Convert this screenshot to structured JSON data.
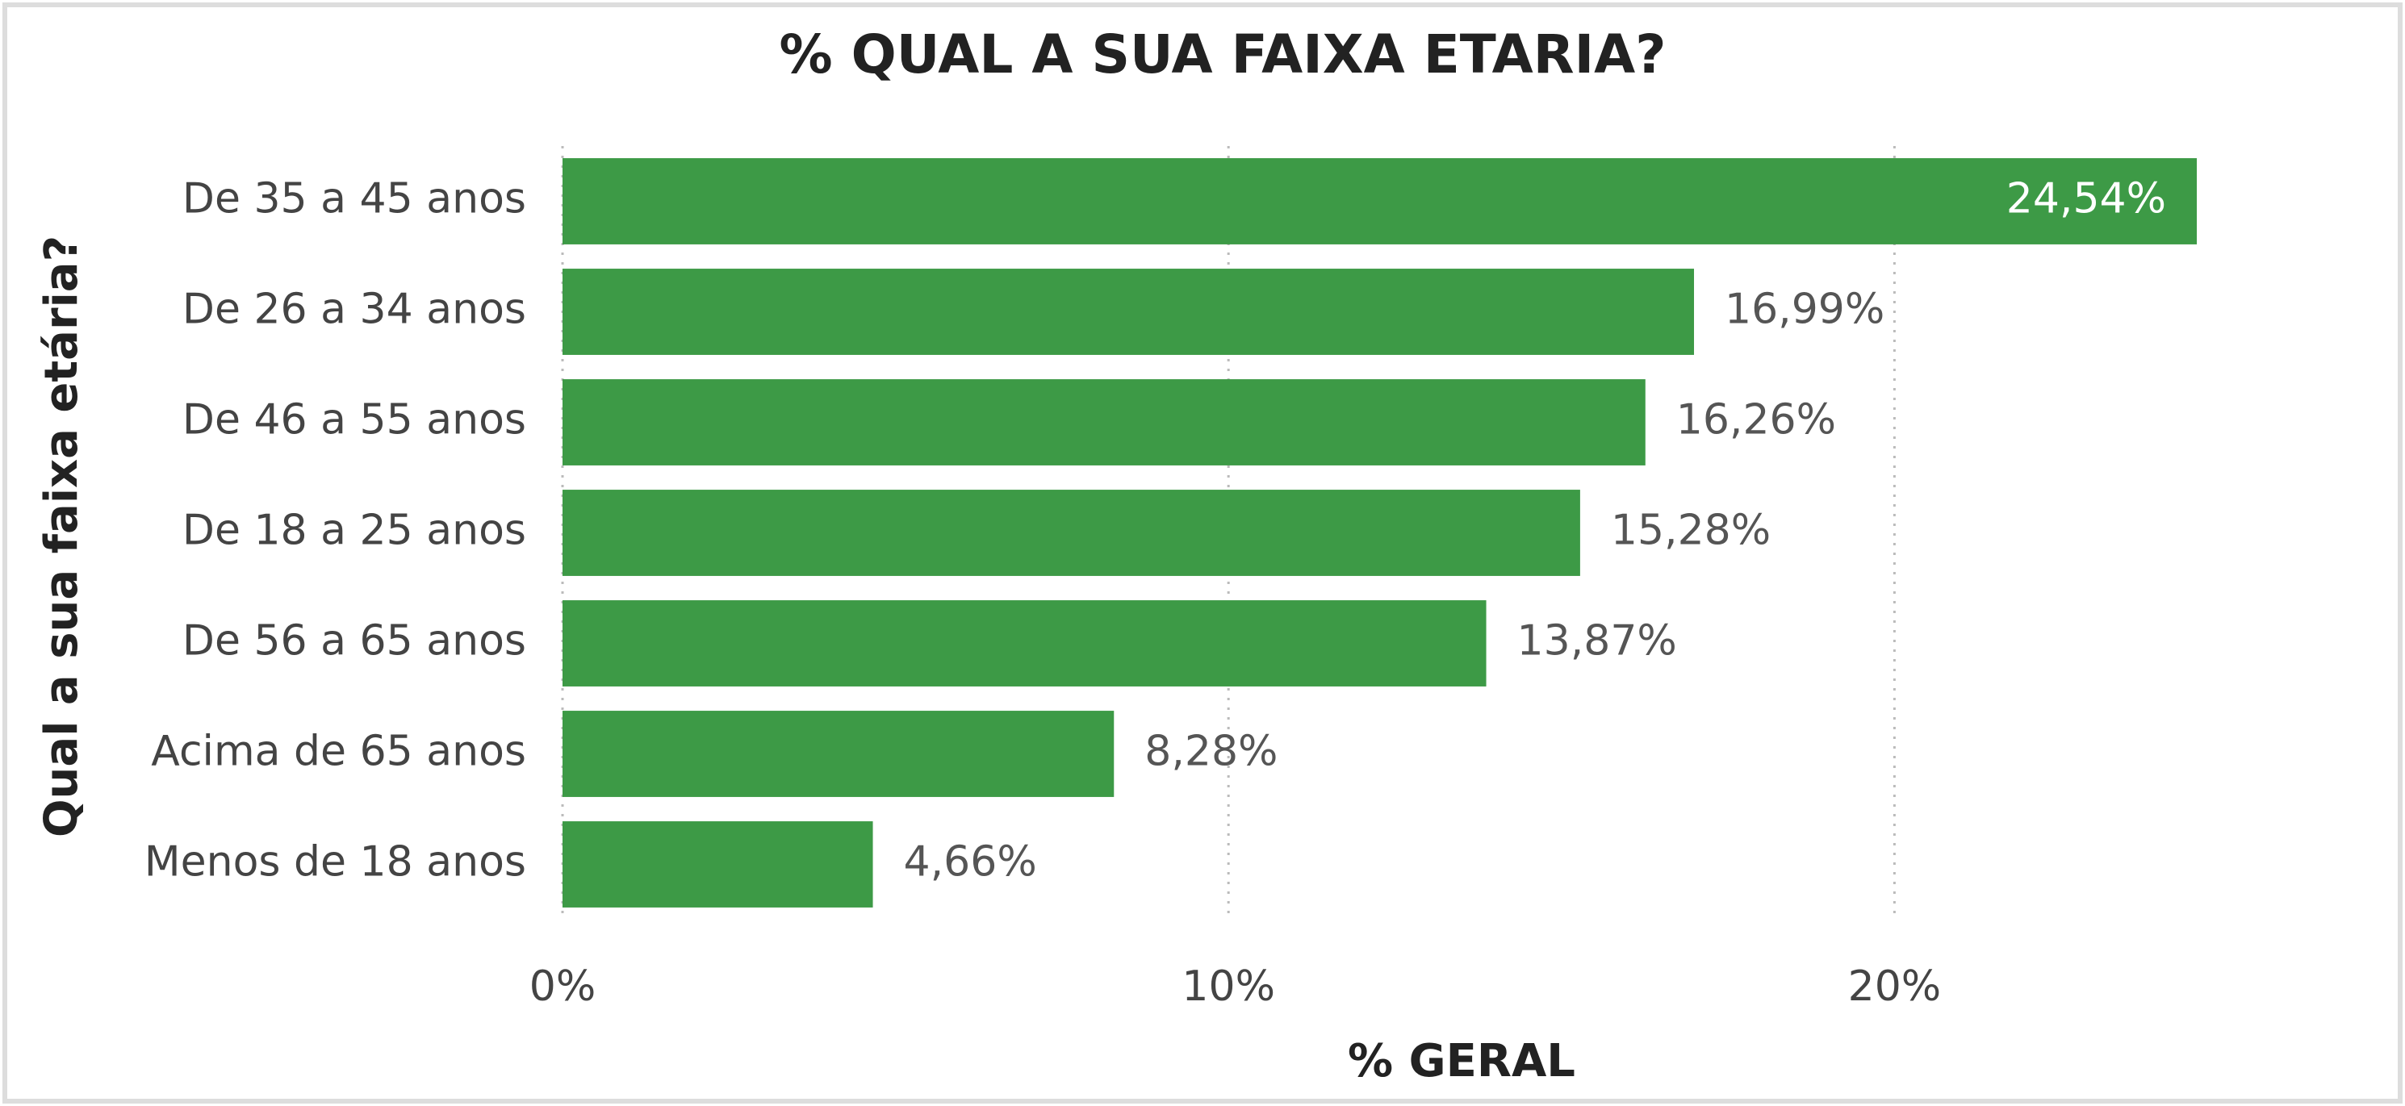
{
  "chart_data": {
    "type": "hbar",
    "title": "% QUAL A SUA FAIXA ETARIA?",
    "x_label": "% GERAL",
    "y_label": "Qual a sua faixa etária?",
    "categories": [
      "De 35 a 45 anos",
      "De 26 a 34 anos",
      "De 46 a 55 anos",
      "De 18 a 25 anos",
      "De 56 a 65 anos",
      "Acima de 65 anos",
      "Menos de 18 anos"
    ],
    "values": [
      24.54,
      16.99,
      16.26,
      15.28,
      13.87,
      8.28,
      4.66
    ],
    "value_labels": [
      "24,54%",
      "16,99%",
      "16,26%",
      "15,28%",
      "13,87%",
      "8,28%",
      "4,66%"
    ],
    "color": "#3d9a46",
    "xlim": [
      0,
      25
    ],
    "xticks": [
      {
        "value": 0,
        "label": "0%"
      },
      {
        "value": 10,
        "label": "10%"
      },
      {
        "value": 20,
        "label": "20%"
      }
    ],
    "grid": true
  }
}
